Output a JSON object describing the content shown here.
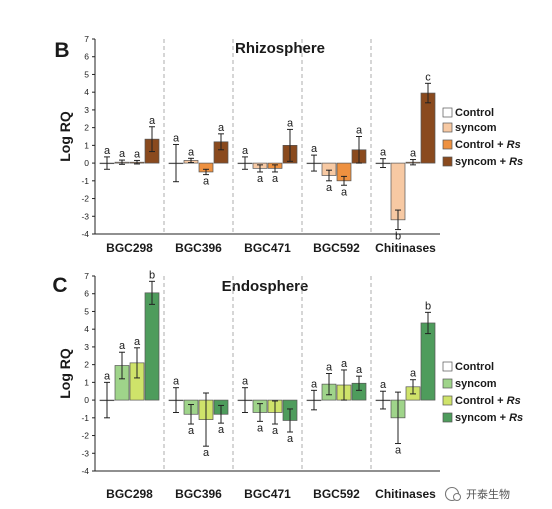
{
  "watermark": "开泰生物",
  "chart_data": [
    {
      "panel": "B",
      "title": "Rhizosphere",
      "type": "bar",
      "ylabel": "Log RQ",
      "ylim": [
        -4,
        7
      ],
      "yticks": [
        -4,
        -3,
        -2,
        -1,
        0,
        1,
        2,
        3,
        4,
        5,
        6,
        7
      ],
      "categories": [
        "BGC298",
        "BGC396",
        "BGC471",
        "BGC592",
        "Chitinases"
      ],
      "legend": [
        "Control",
        "syncom",
        "Control + Rs",
        "syncom + Rs"
      ],
      "legend_italic": "Rs",
      "colors": [
        "#ffffff",
        "#f7c9a3",
        "#ee9140",
        "#8a4a1e"
      ],
      "series": [
        {
          "name": "Control",
          "values": [
            0.0,
            0.0,
            0.0,
            0.0,
            0.0
          ],
          "err": [
            0.35,
            1.05,
            0.35,
            0.45,
            0.25
          ],
          "sig": [
            "a",
            "a",
            "a",
            "a",
            "a"
          ]
        },
        {
          "name": "syncom",
          "values": [
            0.05,
            0.15,
            -0.3,
            -0.7,
            -3.2
          ],
          "err": [
            0.12,
            0.12,
            0.2,
            0.3,
            0.55
          ],
          "sig": [
            "a",
            "a",
            "a",
            "a",
            "b"
          ]
        },
        {
          "name": "Control + Rs",
          "values": [
            0.05,
            -0.5,
            -0.3,
            -1.0,
            0.05
          ],
          "err": [
            0.1,
            0.15,
            0.2,
            0.25,
            0.15
          ],
          "sig": [
            "a",
            "a",
            "a",
            "a",
            "a"
          ]
        },
        {
          "name": "syncom + Rs",
          "values": [
            1.35,
            1.2,
            1.0,
            0.75,
            3.95
          ],
          "err": [
            0.7,
            0.45,
            0.9,
            0.75,
            0.55
          ],
          "sig": [
            "a",
            "a",
            "a",
            "a",
            "c"
          ]
        }
      ]
    },
    {
      "panel": "C",
      "title": "Endosphere",
      "type": "bar",
      "ylabel": "Log RQ",
      "ylim": [
        -4,
        7
      ],
      "yticks": [
        -4,
        -3,
        -2,
        -1,
        0,
        1,
        2,
        3,
        4,
        5,
        6,
        7
      ],
      "categories": [
        "BGC298",
        "BGC396",
        "BGC471",
        "BGC592",
        "Chitinases"
      ],
      "legend": [
        "Control",
        "syncom",
        "Control + Rs",
        "syncom + Rs"
      ],
      "legend_italic": "Rs",
      "colors": [
        "#ffffff",
        "#9fd48a",
        "#cfe36a",
        "#4e9c5c"
      ],
      "series": [
        {
          "name": "Control",
          "values": [
            0.0,
            0.0,
            0.0,
            0.0,
            0.0
          ],
          "err": [
            1.0,
            0.7,
            0.7,
            0.55,
            0.5
          ],
          "sig": [
            "a",
            "a",
            "a",
            "a",
            "a"
          ]
        },
        {
          "name": "syncom",
          "values": [
            1.95,
            -0.8,
            -0.7,
            0.9,
            -1.0
          ],
          "err": [
            0.75,
            0.55,
            0.5,
            0.6,
            1.45
          ],
          "sig": [
            "a",
            "a",
            "a",
            "a",
            "a"
          ]
        },
        {
          "name": "Control + Rs",
          "values": [
            2.1,
            -1.1,
            -0.7,
            0.85,
            0.75
          ],
          "err": [
            0.85,
            1.5,
            0.65,
            0.85,
            0.4
          ],
          "sig": [
            "a",
            "a",
            "a",
            "a",
            "a"
          ]
        },
        {
          "name": "syncom + Rs",
          "values": [
            6.05,
            -0.8,
            -1.15,
            0.95,
            4.35
          ],
          "err": [
            0.65,
            0.5,
            0.65,
            0.4,
            0.6
          ],
          "sig": [
            "b",
            "a",
            "a",
            "a",
            "b"
          ]
        }
      ]
    }
  ]
}
